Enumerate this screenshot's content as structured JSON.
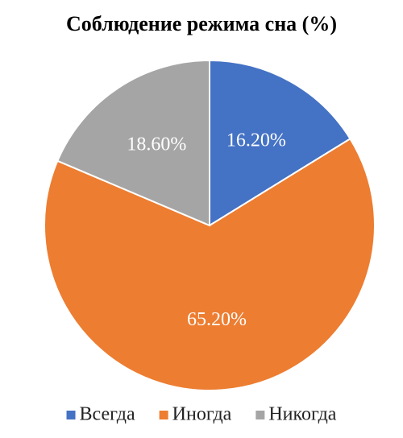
{
  "chart_data": {
    "type": "pie",
    "title": "Соблюдение режима сна (%)",
    "categories": [
      "Всегда",
      "Иногда",
      "Никогда"
    ],
    "values": [
      16.2,
      65.2,
      18.6
    ],
    "value_labels": [
      "16.20%",
      "65.20%",
      "18.60%"
    ],
    "colors": [
      "#4472c4",
      "#ed7d31",
      "#a5a5a5"
    ],
    "legend": "bottom"
  }
}
